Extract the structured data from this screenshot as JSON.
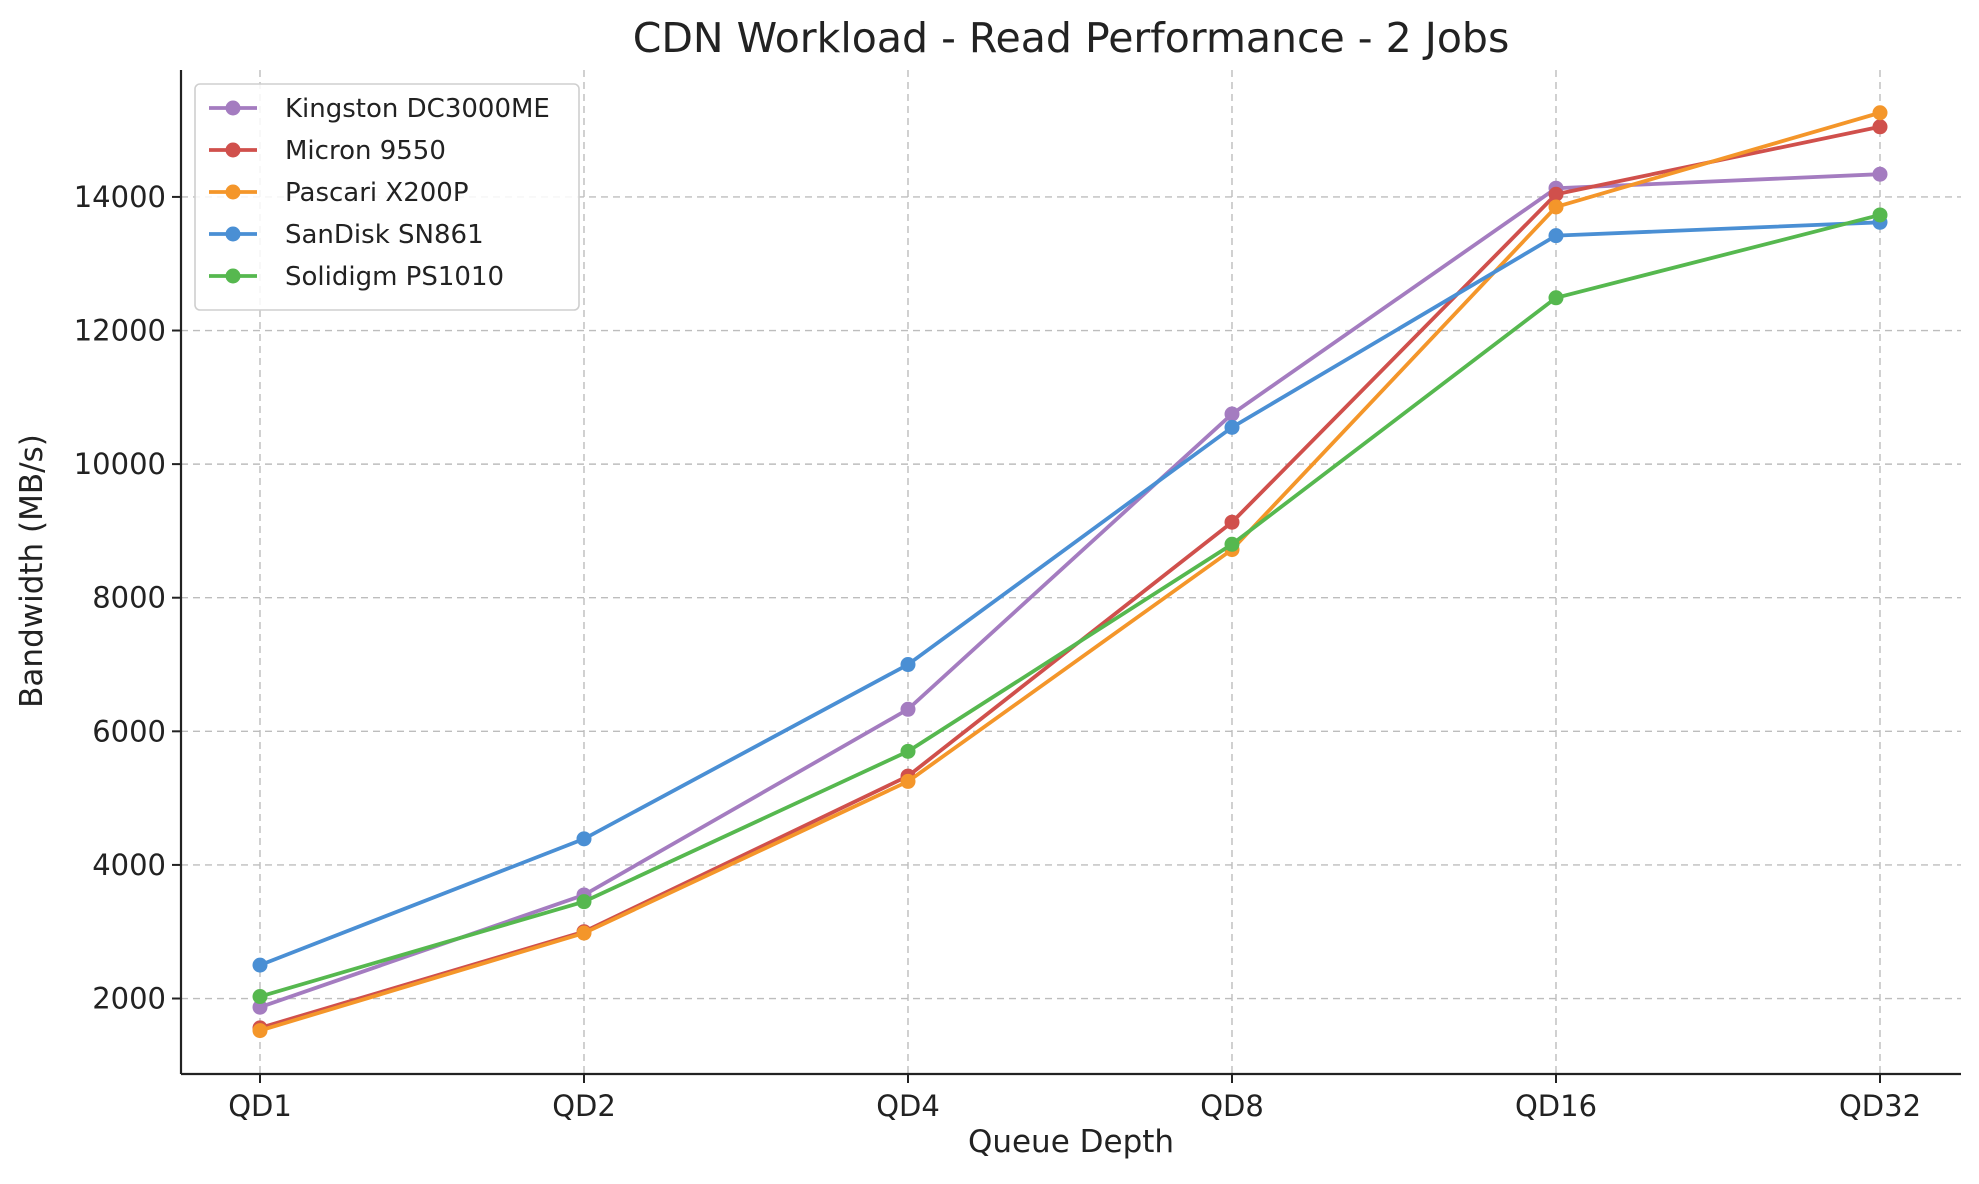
{
  "chart_data": {
    "type": "line",
    "title": "CDN Workload - Read Performance - 2 Jobs",
    "xlabel": "Queue Depth",
    "ylabel": "Bandwidth (MB/s)",
    "categories": [
      "QD1",
      "QD2",
      "QD4",
      "QD8",
      "QD16",
      "QD32"
    ],
    "ylim": [
      870,
      15900
    ],
    "yticks": [
      2000,
      4000,
      6000,
      8000,
      10000,
      12000,
      14000
    ],
    "grid": true,
    "legend_position": "top-left",
    "series": [
      {
        "name": "Kingston DC3000ME",
        "color": "#a47cc0",
        "values": [
          1870,
          3550,
          6330,
          10750,
          14130,
          14340
        ]
      },
      {
        "name": "Micron 9550",
        "color": "#d0504c",
        "values": [
          1560,
          3000,
          5330,
          9130,
          14040,
          15050
        ]
      },
      {
        "name": "Pascari X200P",
        "color": "#f4962a",
        "values": [
          1520,
          2980,
          5250,
          8720,
          13850,
          15260
        ]
      },
      {
        "name": "SanDisk SN861",
        "color": "#4a8fd4",
        "values": [
          2500,
          4390,
          7000,
          10550,
          13420,
          13620
        ]
      },
      {
        "name": "Solidigm PS1010",
        "color": "#56b84f",
        "values": [
          2030,
          3450,
          5700,
          8800,
          12490,
          13730
        ]
      }
    ]
  }
}
